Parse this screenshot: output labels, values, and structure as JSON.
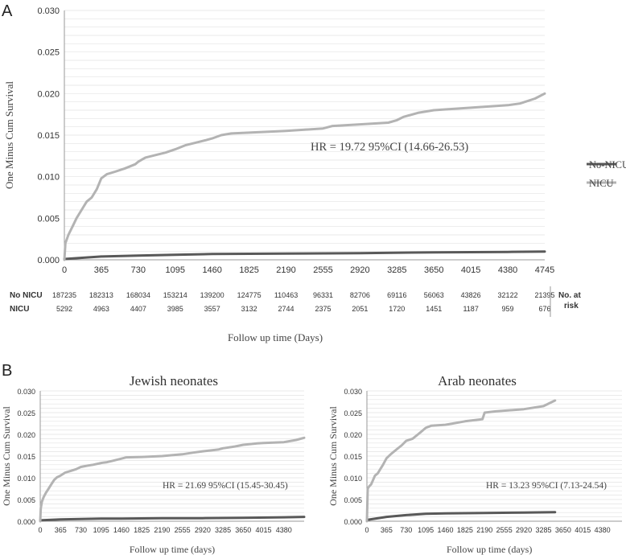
{
  "panel_a": {
    "letter": "A",
    "hr_text": "HR = 19.72 95%CI (14.66-26.53)",
    "risk_table": {
      "rows": [
        {
          "label": "No NICU",
          "values": [
            "187235",
            "182313",
            "168034",
            "153214",
            "139200",
            "124775",
            "110463",
            "96331",
            "82706",
            "69116",
            "56063",
            "43826",
            "32122",
            "21395"
          ]
        },
        {
          "label": "NICU",
          "values": [
            "5292",
            "4963",
            "4407",
            "3985",
            "3557",
            "3132",
            "2744",
            "2375",
            "2051",
            "1720",
            "1451",
            "1187",
            "959",
            "676"
          ]
        }
      ],
      "side_label_line1": "No. at",
      "side_label_line2": "risk"
    }
  },
  "panel_b": {
    "letter": "B"
  },
  "colors": {
    "nicu": "#b3b3b3",
    "no_nicu": "#595959",
    "grid": "#e3e3e3",
    "axis_text": "#333333"
  },
  "chart_data": [
    {
      "type": "line",
      "title": "",
      "xlabel": "Follow up time (Days)",
      "ylabel": "One Minus Cum Survival",
      "xlim": [
        0,
        4745
      ],
      "ylim": [
        0,
        0.03
      ],
      "x_ticks": [
        0,
        365,
        730,
        1095,
        1460,
        1825,
        2190,
        2555,
        2920,
        3285,
        3650,
        4015,
        4380,
        4745
      ],
      "y_ticks": [
        "0.000",
        "0.005",
        "0.010",
        "0.015",
        "0.020",
        "0.025",
        "0.030"
      ],
      "grid": true,
      "legend": "right",
      "series": [
        {
          "name": "No-NICU",
          "x": [
            0,
            365,
            730,
            1095,
            1460,
            2190,
            2920,
            3650,
            4380,
            4745
          ],
          "y": [
            0.0001,
            0.0004,
            0.0005,
            0.0006,
            0.0007,
            0.00075,
            0.0008,
            0.0009,
            0.00095,
            0.001
          ]
        },
        {
          "name": "NICU",
          "x": [
            0,
            10,
            40,
            80,
            120,
            170,
            220,
            270,
            320,
            365,
            420,
            500,
            600,
            700,
            730,
            800,
            900,
            1000,
            1095,
            1200,
            1300,
            1400,
            1460,
            1550,
            1650,
            1825,
            2190,
            2555,
            2650,
            2920,
            3200,
            3285,
            3350,
            3500,
            3650,
            4015,
            4380,
            4500,
            4650,
            4745
          ],
          "y": [
            0,
            0.002,
            0.003,
            0.004,
            0.005,
            0.006,
            0.007,
            0.0075,
            0.0085,
            0.0098,
            0.0103,
            0.0106,
            0.011,
            0.0115,
            0.0118,
            0.0123,
            0.0126,
            0.0129,
            0.0133,
            0.0138,
            0.0141,
            0.0144,
            0.0146,
            0.015,
            0.0152,
            0.0153,
            0.0155,
            0.0158,
            0.0161,
            0.0163,
            0.0165,
            0.0168,
            0.0172,
            0.0177,
            0.018,
            0.0183,
            0.0186,
            0.0188,
            0.0194,
            0.02
          ]
        }
      ]
    },
    {
      "type": "line",
      "title": "Jewish neonates",
      "xlabel": "Follow up time (days)",
      "ylabel": "One Minus Cum Survival",
      "annotation": "HR = 21.69 95%CI (15.45-30.45)",
      "xlim": [
        0,
        4745
      ],
      "ylim": [
        0,
        0.03
      ],
      "x_ticks": [
        0,
        365,
        730,
        1095,
        1460,
        1825,
        2190,
        2555,
        2920,
        3285,
        3650,
        4015,
        4380
      ],
      "y_ticks": [
        "0.000",
        "0.005",
        "0.010",
        "0.015",
        "0.020",
        "0.025",
        "0.030"
      ],
      "grid": true,
      "series": [
        {
          "x": [
            0,
            365,
            730,
            1095,
            1460,
            2190,
            2920,
            3650,
            4380,
            4745
          ],
          "y": [
            0.0002,
            0.0004,
            0.0005,
            0.0006,
            0.0006,
            0.0007,
            0.0007,
            0.0008,
            0.0009,
            0.001
          ]
        },
        {
          "x": [
            0,
            10,
            30,
            60,
            100,
            150,
            200,
            250,
            300,
            365,
            450,
            550,
            650,
            730,
            850,
            950,
            1095,
            1200,
            1300,
            1460,
            1550,
            1825,
            2190,
            2555,
            2750,
            2920,
            3200,
            3285,
            3500,
            3650,
            3900,
            4015,
            4380,
            4600,
            4745
          ],
          "y": [
            0,
            0.003,
            0.0045,
            0.0055,
            0.0065,
            0.0075,
            0.0085,
            0.0095,
            0.0101,
            0.0105,
            0.0112,
            0.0116,
            0.012,
            0.0125,
            0.0128,
            0.013,
            0.0134,
            0.0136,
            0.0139,
            0.0144,
            0.0147,
            0.0148,
            0.015,
            0.0154,
            0.0158,
            0.0161,
            0.0165,
            0.0168,
            0.0172,
            0.0176,
            0.0179,
            0.018,
            0.0182,
            0.0187,
            0.0192
          ]
        }
      ]
    },
    {
      "type": "line",
      "title": "Arab neonates",
      "xlabel": "Follow up time (days)",
      "ylabel": "One Minus Cum Survival",
      "annotation": "HR = 13.23 95%CI (7.13-24.54)",
      "xlim": [
        0,
        4745
      ],
      "ylim": [
        0,
        0.03
      ],
      "x_ticks": [
        0,
        365,
        730,
        1095,
        1460,
        1825,
        2190,
        2555,
        2920,
        3285,
        3650,
        4015,
        4380
      ],
      "y_ticks": [
        "0.000",
        "0.005",
        "0.010",
        "0.015",
        "0.020",
        "0.025",
        "0.030"
      ],
      "grid": true,
      "series": [
        {
          "x": [
            0,
            365,
            730,
            1095,
            1460,
            2190,
            2920,
            3500
          ],
          "y": [
            0.0003,
            0.001,
            0.0014,
            0.0017,
            0.0018,
            0.0019,
            0.002,
            0.0021
          ]
        },
        {
          "x": [
            0,
            15,
            40,
            80,
            150,
            200,
            250,
            300,
            365,
            450,
            550,
            650,
            730,
            850,
            950,
            1000,
            1095,
            1200,
            1460,
            1600,
            1825,
            2150,
            2190,
            2400,
            2920,
            3285,
            3500
          ],
          "y": [
            0,
            0.0075,
            0.008,
            0.0085,
            0.0105,
            0.011,
            0.012,
            0.013,
            0.0145,
            0.0155,
            0.0165,
            0.0175,
            0.0185,
            0.019,
            0.02,
            0.0205,
            0.0215,
            0.022,
            0.0222,
            0.0225,
            0.023,
            0.0235,
            0.025,
            0.0253,
            0.0258,
            0.0265,
            0.0278
          ]
        }
      ]
    }
  ]
}
